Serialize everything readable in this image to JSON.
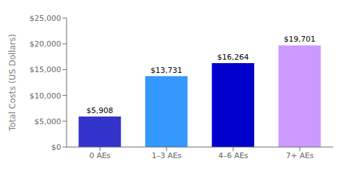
{
  "chart_data": {
    "type": "bar",
    "categories": [
      "0 AEs",
      "1–3 AEs",
      "4–6 AEs",
      "7+ AEs"
    ],
    "values": [
      5908,
      13731,
      16264,
      19701
    ],
    "value_labels": [
      "$5,908",
      "$13,731",
      "$16,264",
      "$19,701"
    ],
    "colors": [
      "#3333cc",
      "#3399ff",
      "#0000cc",
      "#cc99ff"
    ],
    "ylabel": "Total Costs (US Dollars)",
    "ylim": [
      0,
      25000
    ],
    "yticks": [
      {
        "value": 0,
        "label": "$0"
      },
      {
        "value": 5000,
        "label": "$5,000"
      },
      {
        "value": 10000,
        "label": "$10,000"
      },
      {
        "value": 15000,
        "label": "$15,000"
      },
      {
        "value": 20000,
        "label": "$20,000"
      },
      {
        "value": 25000,
        "label": "$25,000"
      }
    ],
    "data_labels": true,
    "grid": false
  }
}
